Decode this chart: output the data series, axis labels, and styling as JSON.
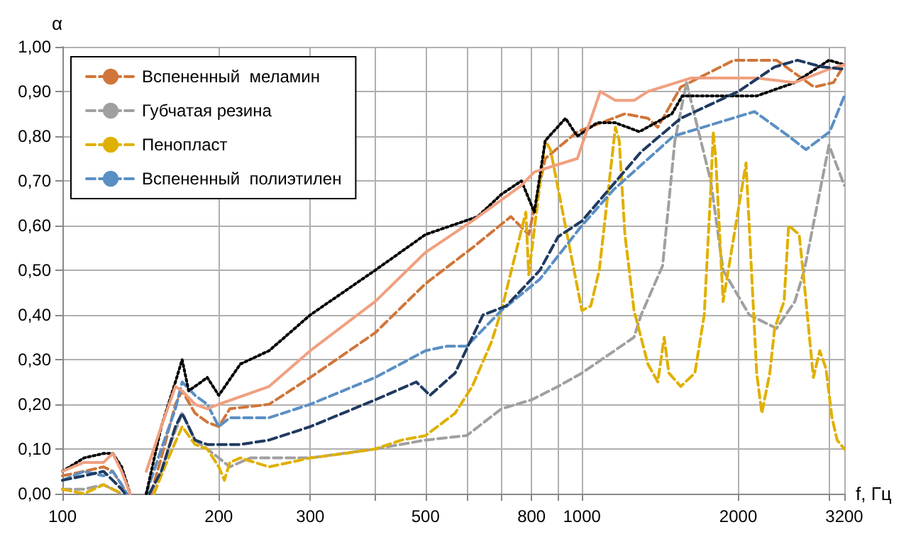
{
  "chart_data": {
    "type": "line",
    "xlabel": "f, Гц",
    "ylabel": "α",
    "log": "x",
    "grid": true,
    "legend": "top left",
    "marker": "none",
    "xlim": [
      100,
      3200
    ],
    "ylim": [
      0,
      1
    ],
    "xticks": [
      100,
      200,
      300,
      {
        "value": 400,
        "label": null
      },
      500,
      {
        "value": 600,
        "label": null
      },
      {
        "value": 700,
        "label": null
      },
      800,
      {
        "value": 900,
        "label": null
      },
      1000,
      2000,
      {
        "value": 3000,
        "label": null
      },
      3200
    ],
    "yticks": [
      {
        "value": 0,
        "label": "0,00"
      },
      {
        "value": 0.1,
        "label": "0,10"
      },
      {
        "value": 0.2,
        "label": "0,20"
      },
      {
        "value": 0.3,
        "label": "0,30"
      },
      {
        "value": 0.4,
        "label": "0,40"
      },
      {
        "value": 0.5,
        "label": "0,50"
      },
      {
        "value": 0.6,
        "label": "0,60"
      },
      {
        "value": 0.7,
        "label": "0,70"
      },
      {
        "value": 0.8,
        "label": "0,80"
      },
      {
        "value": 0.9,
        "label": "0,90"
      },
      {
        "value": 1,
        "label": "1,00"
      }
    ],
    "series": [
      {
        "name": "Вспененный  меламин",
        "color": "#d0763a",
        "line_style": "dashed",
        "x": [
          100,
          110,
          120,
          125,
          130,
          133,
          140,
          148,
          155,
          165,
          170,
          180,
          190,
          200,
          210,
          250,
          300,
          400,
          500,
          615,
          730,
          790,
          850,
          980,
          1210,
          1340,
          1400,
          1550,
          1960,
          2370,
          2800,
          3050,
          3200
        ],
        "values": [
          0.04,
          0.05,
          0.06,
          0.05,
          0.02,
          0,
          null,
          0,
          0.08,
          0.2,
          0.23,
          0.18,
          0.16,
          0.15,
          0.19,
          0.2,
          0.26,
          0.36,
          0.47,
          0.55,
          0.62,
          0.58,
          0.75,
          0.81,
          0.85,
          0.84,
          0.82,
          0.91,
          0.97,
          0.97,
          0.91,
          0.92,
          0.96
        ]
      },
      {
        "name": "Губчатая резина",
        "color": "#a0a0a0",
        "line_style": "dashed",
        "x": [
          100,
          110,
          120,
          125,
          130,
          140,
          150,
          160,
          170,
          180,
          190,
          200,
          210,
          230,
          300,
          400,
          500,
          600,
          700,
          800,
          900,
          1000,
          1260,
          1300,
          1430,
          1510,
          1590,
          1770,
          1870,
          2100,
          2370,
          2570,
          2680,
          2990,
          3200
        ],
        "values": [
          0.01,
          0.01,
          0.02,
          0.01,
          0,
          null,
          0,
          0.1,
          0.18,
          0.12,
          0.1,
          0.08,
          0.06,
          0.08,
          0.08,
          0.1,
          0.12,
          0.13,
          0.19,
          0.21,
          0.24,
          0.27,
          0.35,
          0.4,
          0.51,
          0.79,
          0.92,
          0.7,
          0.5,
          0.4,
          0.37,
          0.43,
          0.5,
          0.78,
          0.69
        ]
      },
      {
        "name": "Пенопласт",
        "color": "#e0b000",
        "line_style": "dashed",
        "x": [
          100,
          110,
          120,
          125,
          130,
          140,
          150,
          160,
          170,
          180,
          190,
          200,
          205,
          210,
          220,
          250,
          300,
          350,
          400,
          450,
          500,
          570,
          615,
          670,
          700,
          750,
          780,
          790,
          850,
          870,
          940,
          1000,
          1040,
          1080,
          1160,
          1180,
          1210,
          1260,
          1340,
          1400,
          1440,
          1470,
          1550,
          1650,
          1720,
          1770,
          1790,
          1810,
          1870,
          2070,
          2170,
          2220,
          2300,
          2350,
          2450,
          2500,
          2620,
          2680,
          2790,
          2870,
          2950,
          3030,
          3100,
          3200
        ],
        "values": [
          0.01,
          0,
          0.02,
          0.01,
          0,
          null,
          0,
          0.08,
          0.15,
          0.11,
          0.1,
          0.06,
          0.03,
          0.07,
          0.08,
          0.06,
          0.08,
          0.09,
          0.1,
          0.12,
          0.13,
          0.18,
          0.24,
          0.34,
          0.41,
          0.55,
          0.63,
          0.49,
          0.79,
          0.77,
          0.57,
          0.41,
          0.42,
          0.5,
          0.82,
          0.79,
          0.58,
          0.41,
          0.29,
          0.25,
          0.35,
          0.27,
          0.24,
          0.27,
          0.4,
          0.68,
          0.81,
          0.75,
          0.43,
          0.74,
          0.27,
          0.18,
          0.27,
          0.37,
          0.43,
          0.6,
          0.58,
          0.47,
          0.26,
          0.32,
          0.28,
          0.17,
          0.12,
          0.1
        ]
      },
      {
        "name": "Вспененный  полиэтилен",
        "color": "#5a8fc4",
        "line_style": "dashed",
        "x": [
          100,
          110,
          120,
          125,
          130,
          133,
          140,
          145,
          155,
          165,
          170,
          180,
          190,
          200,
          210,
          250,
          300,
          400,
          500,
          550,
          600,
          700,
          830,
          1000,
          1150,
          1500,
          2150,
          2500,
          2700,
          3000,
          3200
        ],
        "values": [
          0.03,
          0.05,
          0.04,
          0.05,
          0.02,
          0,
          null,
          0,
          0.1,
          0.19,
          0.25,
          0.22,
          0.2,
          0.15,
          0.17,
          0.17,
          0.2,
          0.26,
          0.32,
          0.33,
          0.33,
          0.41,
          0.48,
          0.6,
          0.68,
          0.8,
          0.855,
          0.8,
          0.77,
          0.81,
          0.89
        ]
      },
      {
        "color": "#000000",
        "line_style": "dotted",
        "x": [
          100,
          110,
          120,
          125,
          130,
          135,
          140,
          145,
          155,
          165,
          170,
          175,
          185,
          190,
          200,
          220,
          250,
          300,
          400,
          500,
          630,
          700,
          765,
          810,
          850,
          930,
          980,
          1070,
          1160,
          1290,
          1490,
          1560,
          1770,
          2170,
          2570,
          2990,
          3200
        ],
        "values": [
          0.05,
          0.08,
          0.09,
          0.09,
          0.06,
          0,
          null,
          0,
          0.15,
          0.25,
          0.3,
          0.23,
          0.25,
          0.26,
          0.22,
          0.29,
          0.32,
          0.4,
          0.5,
          0.58,
          0.62,
          0.67,
          0.7,
          0.63,
          0.79,
          0.84,
          0.8,
          0.83,
          0.83,
          0.81,
          0.85,
          0.89,
          0.89,
          0.89,
          0.92,
          0.97,
          0.96
        ]
      },
      {
        "color": "#f0a080",
        "line_style": "solid",
        "x": [
          100,
          110,
          120,
          125,
          130,
          135,
          140,
          145,
          155,
          165,
          170,
          180,
          190,
          200,
          250,
          300,
          400,
          500,
          615,
          765,
          810,
          980,
          1085,
          1160,
          1260,
          1340,
          1620,
          2170,
          2570,
          2990,
          3200
        ],
        "values": [
          0.05,
          0.07,
          0.07,
          0.09,
          0.05,
          0,
          null,
          0.05,
          0.15,
          0.24,
          0.23,
          0.2,
          0.19,
          0.2,
          0.24,
          0.32,
          0.43,
          0.54,
          0.61,
          0.69,
          0.72,
          0.75,
          0.9,
          0.88,
          0.88,
          0.9,
          0.93,
          0.93,
          0.92,
          0.95,
          0.96
        ]
      },
      {
        "color": "#1f3a60",
        "line_style": "dashed",
        "x": [
          100,
          110,
          120,
          125,
          130,
          132,
          140,
          147,
          155,
          165,
          170,
          180,
          190,
          200,
          220,
          250,
          300,
          400,
          480,
          510,
          570,
          645,
          715,
          830,
          900,
          1000,
          1300,
          1550,
          2000,
          2350,
          2600,
          2900,
          3200
        ],
        "values": [
          0.03,
          0.04,
          0.05,
          0.03,
          0.01,
          0,
          null,
          0,
          0.05,
          0.15,
          0.18,
          0.12,
          0.11,
          0.11,
          0.11,
          0.12,
          0.15,
          0.21,
          0.25,
          0.22,
          0.27,
          0.4,
          0.42,
          0.5,
          0.575,
          0.61,
          0.765,
          0.84,
          0.9,
          0.955,
          0.97,
          0.955,
          0.95
        ]
      }
    ]
  }
}
